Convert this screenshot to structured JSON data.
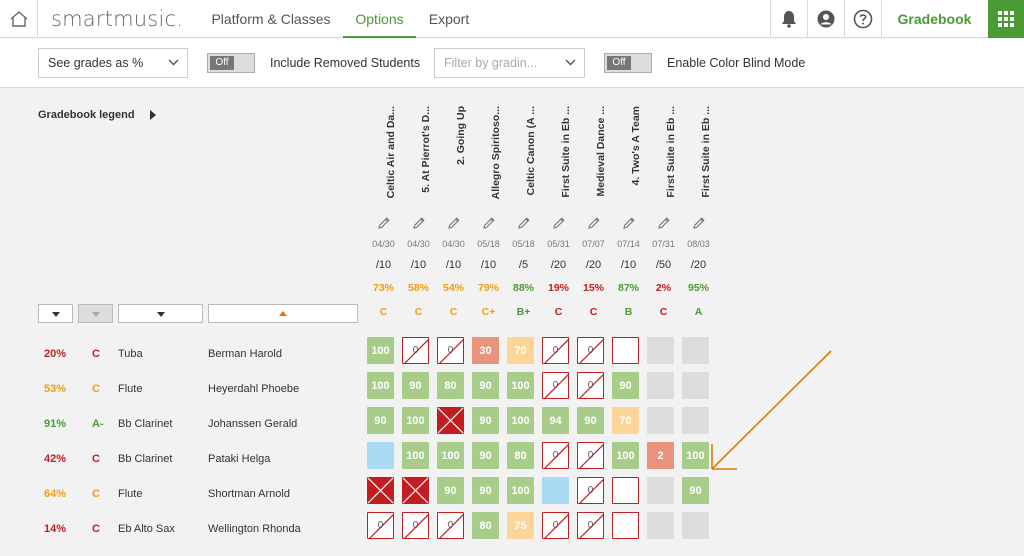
{
  "nav": {
    "logo": "smartmusic.",
    "tabs": [
      {
        "label": "Platform & Classes",
        "active": false
      },
      {
        "label": "Options",
        "active": true
      },
      {
        "label": "Export",
        "active": false
      }
    ],
    "gradebook_label": "Gradebook",
    "icons": [
      "home-icon",
      "bell-icon",
      "user-icon",
      "help-icon",
      "apps-grid-icon"
    ]
  },
  "toolbar": {
    "grades_select": "See grades as %",
    "removed_toggle": "Off",
    "removed_label": "Include Removed Students",
    "filter_placeholder": "Filter by gradin...",
    "colorblind_toggle": "Off",
    "colorblind_label": "Enable Color Blind Mode"
  },
  "legend": {
    "label": "Gradebook legend"
  },
  "colors": {
    "green": "#4a9a35",
    "orange": "#f39c12",
    "red": "#c21d20"
  },
  "assignments": [
    {
      "title": "Celtic Air and Da...",
      "date": "04/30",
      "max": "/10",
      "pct": "73%",
      "grade": "C",
      "color": "orange"
    },
    {
      "title": "5. At Pierrot's D...",
      "date": "04/30",
      "max": "/10",
      "pct": "58%",
      "grade": "C",
      "color": "orange"
    },
    {
      "title": "2. Going Up",
      "date": "04/30",
      "max": "/10",
      "pct": "54%",
      "grade": "C",
      "color": "orange"
    },
    {
      "title": "Allegro Spiritoso...",
      "date": "05/18",
      "max": "/10",
      "pct": "79%",
      "grade": "C+",
      "color": "orange"
    },
    {
      "title": "Celtic Canon (A ...",
      "date": "05/18",
      "max": "/5",
      "pct": "88%",
      "grade": "B+",
      "color": "green"
    },
    {
      "title": "First Suite in Eb ...",
      "date": "05/31",
      "max": "/20",
      "pct": "19%",
      "grade": "C",
      "color": "red"
    },
    {
      "title": "Medieval Dance ...",
      "date": "07/07",
      "max": "/20",
      "pct": "15%",
      "grade": "C",
      "color": "red"
    },
    {
      "title": "4. Two's A Team",
      "date": "07/14",
      "max": "/10",
      "pct": "87%",
      "grade": "B",
      "color": "green"
    },
    {
      "title": "First Suite in Eb ...",
      "date": "07/31",
      "max": "/50",
      "pct": "2%",
      "grade": "C",
      "color": "red"
    },
    {
      "title": "First Suite in Eb ...",
      "date": "08/03",
      "max": "/20",
      "pct": "95%",
      "grade": "A",
      "color": "green"
    }
  ],
  "students": [
    {
      "pct": "20%",
      "grade": "C",
      "color": "red",
      "instrument": "Tuba",
      "name": "Berman Harold",
      "cells": [
        {
          "t": "g",
          "v": "100"
        },
        {
          "t": "m",
          "v": "0"
        },
        {
          "t": "m",
          "v": "0"
        },
        {
          "t": "r",
          "v": "30"
        },
        {
          "t": "o",
          "v": "70"
        },
        {
          "t": "m",
          "v": "0"
        },
        {
          "t": "m",
          "v": "0"
        },
        {
          "t": "n",
          "v": ""
        },
        {
          "t": "e",
          "v": ""
        },
        {
          "t": "e",
          "v": ""
        }
      ]
    },
    {
      "pct": "53%",
      "grade": "C",
      "color": "orange",
      "instrument": "Flute",
      "name": "Heyerdahl Phoebe",
      "cells": [
        {
          "t": "g",
          "v": "100"
        },
        {
          "t": "g",
          "v": "90"
        },
        {
          "t": "g",
          "v": "80"
        },
        {
          "t": "g",
          "v": "90"
        },
        {
          "t": "g",
          "v": "100"
        },
        {
          "t": "m",
          "v": "0"
        },
        {
          "t": "m",
          "v": "0"
        },
        {
          "t": "g",
          "v": "90"
        },
        {
          "t": "e",
          "v": ""
        },
        {
          "t": "e",
          "v": ""
        }
      ]
    },
    {
      "pct": "91%",
      "grade": "A-",
      "color": "green",
      "instrument": "Bb Clarinet",
      "name": "Johanssen Gerald",
      "cells": [
        {
          "t": "g",
          "v": "90"
        },
        {
          "t": "g",
          "v": "100"
        },
        {
          "t": "x",
          "v": ""
        },
        {
          "t": "g",
          "v": "90"
        },
        {
          "t": "g",
          "v": "100"
        },
        {
          "t": "g",
          "v": "94"
        },
        {
          "t": "g",
          "v": "90"
        },
        {
          "t": "o",
          "v": "70"
        },
        {
          "t": "e",
          "v": ""
        },
        {
          "t": "e",
          "v": ""
        }
      ]
    },
    {
      "pct": "42%",
      "grade": "C",
      "color": "red",
      "instrument": "Bb Clarinet",
      "name": "Pataki Helga",
      "cells": [
        {
          "t": "b",
          "v": ""
        },
        {
          "t": "g",
          "v": "100"
        },
        {
          "t": "g",
          "v": "100"
        },
        {
          "t": "g",
          "v": "90"
        },
        {
          "t": "g",
          "v": "80"
        },
        {
          "t": "m",
          "v": "0"
        },
        {
          "t": "m",
          "v": "0"
        },
        {
          "t": "g",
          "v": "100"
        },
        {
          "t": "r",
          "v": "2"
        },
        {
          "t": "g",
          "v": "100"
        }
      ]
    },
    {
      "pct": "64%",
      "grade": "C",
      "color": "orange",
      "instrument": "Flute",
      "name": "Shortman Arnold",
      "cells": [
        {
          "t": "x",
          "v": ""
        },
        {
          "t": "x",
          "v": ""
        },
        {
          "t": "g",
          "v": "90"
        },
        {
          "t": "g",
          "v": "90"
        },
        {
          "t": "g",
          "v": "100"
        },
        {
          "t": "b",
          "v": ""
        },
        {
          "t": "m",
          "v": "0"
        },
        {
          "t": "n",
          "v": ""
        },
        {
          "t": "e",
          "v": ""
        },
        {
          "t": "g",
          "v": "90"
        }
      ]
    },
    {
      "pct": "14%",
      "grade": "C",
      "color": "red",
      "instrument": "Eb Alto Sax",
      "name": "Wellington Rhonda",
      "cells": [
        {
          "t": "m",
          "v": "0"
        },
        {
          "t": "m",
          "v": "0"
        },
        {
          "t": "m",
          "v": "0"
        },
        {
          "t": "g",
          "v": "80"
        },
        {
          "t": "o",
          "v": "75"
        },
        {
          "t": "m",
          "v": "0"
        },
        {
          "t": "m",
          "v": "0"
        },
        {
          "t": "n",
          "v": ""
        },
        {
          "t": "e",
          "v": ""
        },
        {
          "t": "e",
          "v": ""
        }
      ]
    }
  ]
}
